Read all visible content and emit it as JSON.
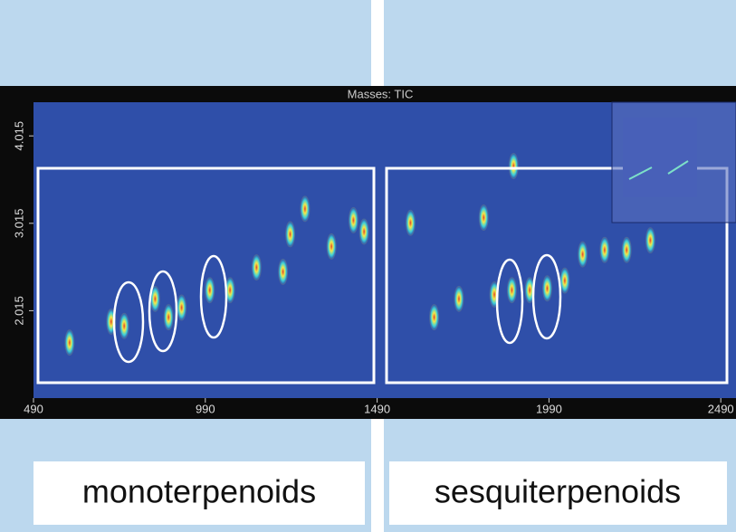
{
  "chart_data": {
    "type": "scatter",
    "title": "Masses: TIC",
    "series": [
      {
        "color": "#f2e84a",
        "x": [
          595,
          716,
          754,
          844,
          883,
          921,
          1003,
          1062,
          1139,
          1216,
          1237,
          1280,
          1357,
          1421,
          1452,
          1587,
          1656,
          1728,
          1800,
          1831,
          1882,
          1934,
          1985,
          2036,
          2088,
          2152,
          2216,
          2285,
          1887
        ],
        "values": [
          1.65,
          1.89,
          1.84,
          2.15,
          1.94,
          2.05,
          2.25,
          2.25,
          2.51,
          2.46,
          2.89,
          3.18,
          2.75,
          3.05,
          2.92,
          3.02,
          1.94,
          2.15,
          3.08,
          2.2,
          2.25,
          2.25,
          2.27,
          2.36,
          2.66,
          2.71,
          2.71,
          2.82,
          3.67
        ]
      }
    ],
    "xlim": [
      490,
      2500
    ],
    "xticks": [
      490,
      990,
      1490,
      1990,
      2490
    ],
    "ylim": [
      1.015,
      4.4
    ],
    "yticks": [
      2.015,
      3.015,
      4.015
    ],
    "annotations": [
      "monoterpenoids",
      "sesquiterpenoids"
    ]
  }
}
